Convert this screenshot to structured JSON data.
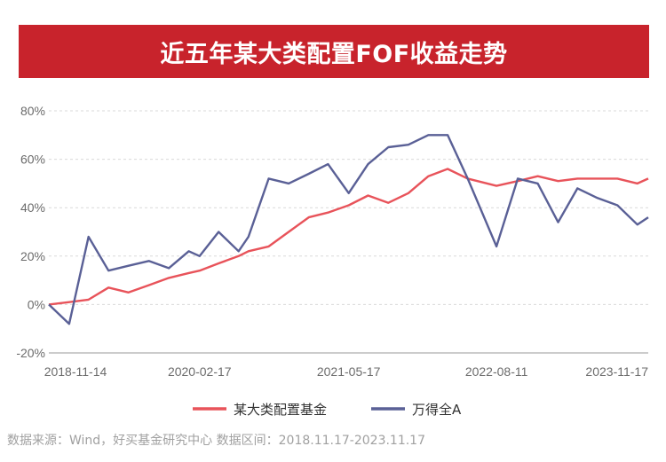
{
  "title": "近五年某大类配置FOF收益走势",
  "source_note": "数据来源：Wind，好买基金研究中心  数据区间：2018.11.17-2023.11.17",
  "colors": {
    "banner": "#c8232c",
    "series1": "#e8535a",
    "series2": "#5a6096",
    "grid": "#d9d9d9"
  },
  "chart_data": {
    "type": "line",
    "title": "近五年某大类配置FOF收益走势",
    "xlabel": "",
    "ylabel": "",
    "x_ticks": [
      "2018-11-14",
      "2020-02-17",
      "2021-05-17",
      "2022-08-11",
      "2023-11-17"
    ],
    "y_ticks": [
      "80%",
      "60%",
      "40%",
      "20%",
      "0%",
      "-20%"
    ],
    "ylim": [
      -20,
      80
    ],
    "grid": true,
    "legend_position": "bottom",
    "x": [
      "2018-11-14",
      "2019-01-15",
      "2019-03-15",
      "2019-05-15",
      "2019-07-15",
      "2019-09-15",
      "2019-11-15",
      "2020-01-15",
      "2020-02-17",
      "2020-04-15",
      "2020-06-15",
      "2020-07-15",
      "2020-09-15",
      "2020-11-15",
      "2021-01-15",
      "2021-03-15",
      "2021-05-17",
      "2021-07-15",
      "2021-09-15",
      "2021-11-15",
      "2022-01-15",
      "2022-03-15",
      "2022-05-15",
      "2022-08-11",
      "2022-10-15",
      "2022-12-15",
      "2023-02-15",
      "2023-04-15",
      "2023-06-15",
      "2023-08-15",
      "2023-10-15",
      "2023-11-17"
    ],
    "series": [
      {
        "name": "某大类配置基金",
        "color": "#e8535a",
        "values": [
          0,
          1,
          2,
          7,
          5,
          8,
          11,
          13,
          14,
          17,
          20,
          22,
          24,
          30,
          36,
          38,
          41,
          45,
          42,
          46,
          53,
          56,
          52,
          49,
          51,
          53,
          51,
          52,
          52,
          52,
          50,
          52
        ]
      },
      {
        "name": "万得全A",
        "color": "#5a6096",
        "values": [
          0,
          -8,
          28,
          14,
          16,
          18,
          15,
          22,
          20,
          30,
          22,
          28,
          52,
          50,
          54,
          58,
          46,
          58,
          65,
          66,
          70,
          70,
          52,
          24,
          52,
          50,
          34,
          48,
          44,
          41,
          33,
          36
        ]
      }
    ]
  }
}
